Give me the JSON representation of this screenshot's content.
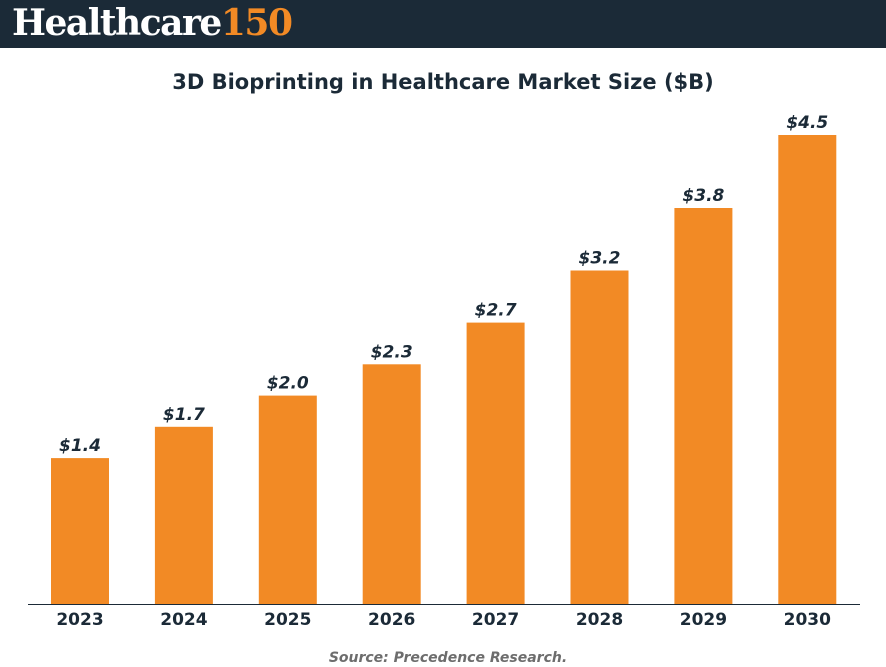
{
  "header": {
    "logo_word": "Healthcare",
    "logo_number": "150"
  },
  "chart_data": {
    "type": "bar",
    "title": "3D Bioprinting in Healthcare Market Size ($B)",
    "categories": [
      "2023",
      "2024",
      "2025",
      "2026",
      "2027",
      "2028",
      "2029",
      "2030"
    ],
    "values": [
      1.4,
      1.7,
      2.0,
      2.3,
      2.7,
      3.2,
      3.8,
      4.5
    ],
    "value_labels": [
      "$1.4",
      "$1.7",
      "$2.0",
      "$2.3",
      "$2.7",
      "$3.2",
      "$3.8",
      "$4.5"
    ],
    "xlabel": "",
    "ylabel": "",
    "ylim": [
      0,
      4.5
    ],
    "grid": false,
    "bar_color": "#f28a25"
  },
  "footer": {
    "source": "Source: Precedence Research."
  }
}
